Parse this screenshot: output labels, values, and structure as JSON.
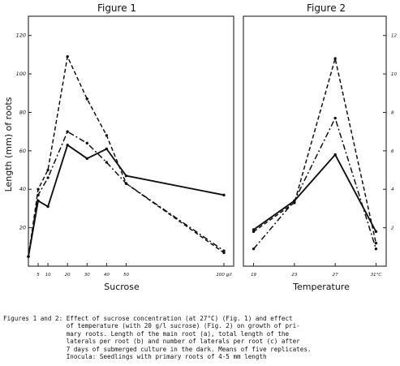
{
  "caption_text": "Figures 1 and 2: Effect of sucrose concentration (at 27°C) (Fig. 1) and effect\n                 of temperature (with 20 g/l sucrose) (Fig. 2) on growth of pri-\n                 mary roots. Length of the main root (a), total length of the\n                 laterals per root (b) and number of laterals per root (c) after\n                 7 days of submerged culture in the dark. Means of five replicates.\n                 Inocula: Seedlings with primary roots of 4-5 mm length",
  "ylabel": "Length (mm) of roots",
  "chart_data": [
    {
      "type": "line",
      "title": "Figure 1",
      "xlabel": "Sucrose",
      "x_ticks": [
        {
          "v": 5,
          "label": "5"
        },
        {
          "v": 10,
          "label": "10"
        },
        {
          "v": 20,
          "label": "20"
        },
        {
          "v": 30,
          "label": "30"
        },
        {
          "v": 40,
          "label": "40"
        },
        {
          "v": 50,
          "label": "50"
        },
        {
          "v": 100,
          "label": "100 g/l"
        }
      ],
      "y_ticks": [
        {
          "v": 20,
          "label": "20"
        },
        {
          "v": 40,
          "label": "40"
        },
        {
          "v": 60,
          "label": "60"
        },
        {
          "v": 80,
          "label": "80"
        },
        {
          "v": 100,
          "label": "100"
        },
        {
          "v": 120,
          "label": "120"
        }
      ],
      "xlim": [
        0,
        105
      ],
      "ylim": [
        0,
        130
      ],
      "series": [
        {
          "key": "a",
          "style": "solid",
          "x": [
            0,
            5,
            10,
            20,
            30,
            40,
            50,
            100
          ],
          "y": [
            5,
            34,
            31,
            63,
            56,
            61,
            47,
            37
          ]
        },
        {
          "key": "b",
          "style": "dashdot",
          "x": [
            0,
            5,
            10,
            20,
            30,
            40,
            50,
            100
          ],
          "y": [
            5,
            37,
            46,
            70,
            64,
            54,
            43,
            8
          ]
        },
        {
          "key": "c",
          "style": "dashed",
          "x": [
            0,
            5,
            10,
            20,
            30,
            40,
            50,
            100
          ],
          "y": [
            5,
            40,
            50,
            109,
            87,
            68,
            43,
            7
          ]
        }
      ]
    },
    {
      "type": "line",
      "title": "Figure 2",
      "xlabel": "Temperature",
      "x_ticks": [
        {
          "v": 19,
          "label": "19"
        },
        {
          "v": 23,
          "label": "23"
        },
        {
          "v": 27,
          "label": "27"
        },
        {
          "v": 31,
          "label": "31°C"
        }
      ],
      "y_ticks": [
        {
          "v": 20,
          "label": "2"
        },
        {
          "v": 40,
          "label": "4"
        },
        {
          "v": 60,
          "label": "6"
        },
        {
          "v": 80,
          "label": "8"
        },
        {
          "v": 100,
          "label": "10"
        },
        {
          "v": 120,
          "label": "12"
        }
      ],
      "xlim": [
        18,
        32
      ],
      "ylim": [
        0,
        130
      ],
      "series": [
        {
          "key": "a",
          "style": "solid",
          "x": [
            19,
            23,
            27,
            31
          ],
          "y": [
            19,
            34,
            58,
            18
          ]
        },
        {
          "key": "b",
          "style": "dashdot",
          "x": [
            19,
            23,
            27,
            31
          ],
          "y": [
            9,
            34,
            77,
            9
          ]
        },
        {
          "key": "c",
          "style": "dashed",
          "x": [
            19,
            23,
            27,
            31
          ],
          "y": [
            18,
            33,
            108,
            12
          ]
        }
      ]
    }
  ]
}
